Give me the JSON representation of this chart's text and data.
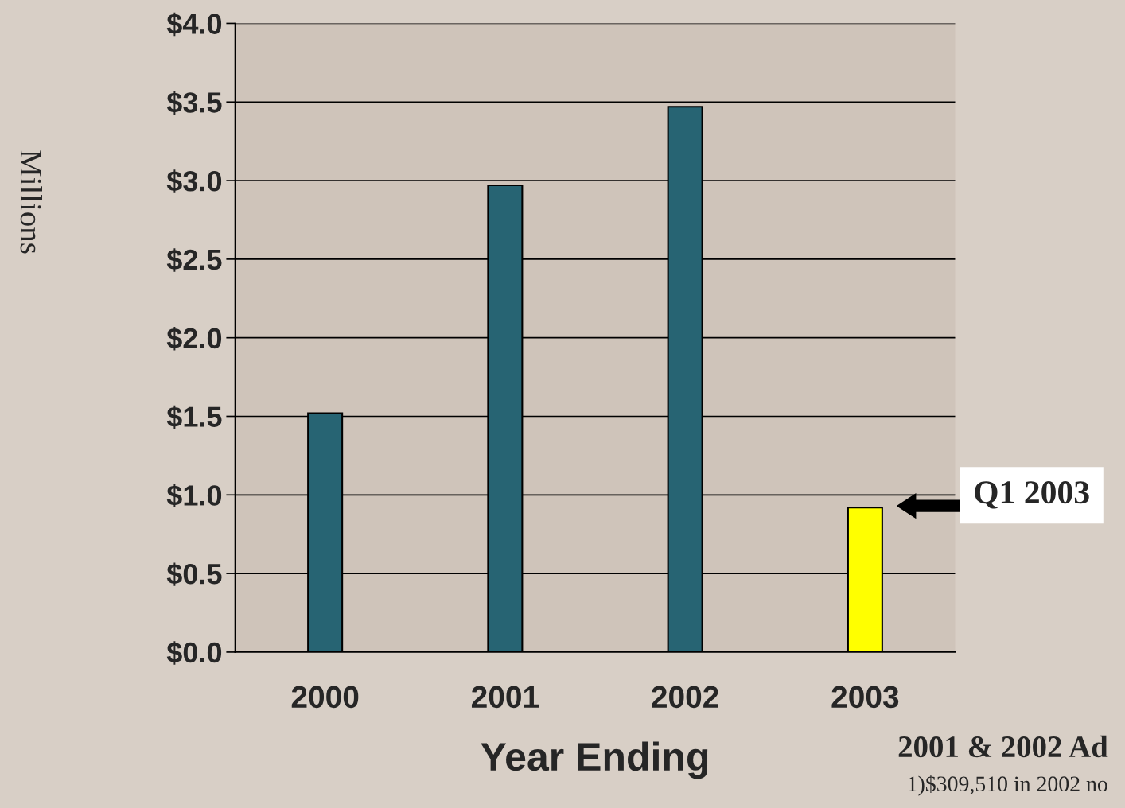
{
  "chart_data": {
    "type": "bar",
    "categories": [
      "2000",
      "2001",
      "2002",
      "2003"
    ],
    "values": [
      1.52,
      2.97,
      3.47,
      0.92
    ],
    "colors": [
      "#276473",
      "#276473",
      "#276473",
      "#ffff00"
    ],
    "xlabel": "Year Ending",
    "ylabel": "Millions",
    "ylim": [
      0,
      4.0
    ],
    "yticks": [
      {
        "value": 0,
        "label": "$0.0"
      },
      {
        "value": 0.5,
        "label": "$0.5"
      },
      {
        "value": 1.0,
        "label": "$1.0"
      },
      {
        "value": 1.5,
        "label": "$1.5"
      },
      {
        "value": 2.0,
        "label": "$2.0"
      },
      {
        "value": 2.5,
        "label": "$2.5"
      },
      {
        "value": 3.0,
        "label": "$3.0"
      },
      {
        "value": 3.5,
        "label": "$3.5"
      },
      {
        "value": 4.0,
        "label": "$4.0"
      }
    ],
    "grid": "y",
    "annotations": [
      "Q1 2003",
      "2001 & 2002 Ad",
      "1)$309,510 in 2002 no"
    ]
  }
}
